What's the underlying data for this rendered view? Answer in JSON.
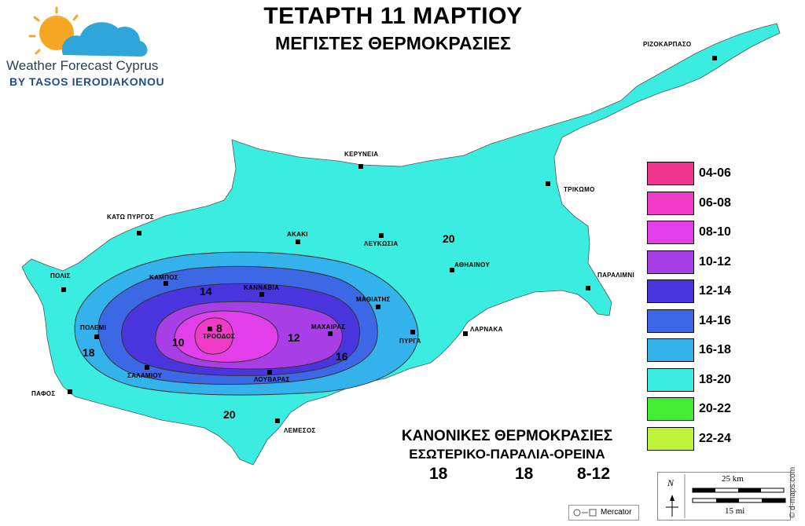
{
  "title": {
    "main": "ΤΕΤΑΡΤΗ 11 ΜΑΡΤΙΟΥ",
    "sub": "ΜΕΓΙΣΤΕΣ ΘΕΡΜΟΚΡΑΣΙΕΣ"
  },
  "logo": {
    "name": "Weather Forecast Cyprus",
    "by": "BY TASOS IERODIAKONOU"
  },
  "towns": [
    {
      "key": "rizokarpaso",
      "name": "ΡΙΖΟΚΑΡΠΑΣΟ"
    },
    {
      "key": "kyrenia",
      "name": "ΚΕΡΥΝΕΙΑ"
    },
    {
      "key": "trikomo",
      "name": "ΤΡΙΚΩΜΟ"
    },
    {
      "key": "kato-pyrgos",
      "name": "ΚΑΤΩ ΠΥΡΓΟΣ"
    },
    {
      "key": "akaki",
      "name": "ΑΚΑΚΙ"
    },
    {
      "key": "lefkosia",
      "name": "ΛΕΥΚΩΣΙΑ"
    },
    {
      "key": "athienou",
      "name": "ΑΘΗΑΙΝΟΥ"
    },
    {
      "key": "paralimni",
      "name": "ΠΑΡΑΛΙΜΝΙ"
    },
    {
      "key": "polis",
      "name": "ΠΟΛΙΣ"
    },
    {
      "key": "kampos",
      "name": "ΚΑΜΠΟΣ"
    },
    {
      "key": "kannavia",
      "name": "ΚΑΝΝΑΒΙΑ"
    },
    {
      "key": "mathiatis",
      "name": "ΜΑΘΙΑΤΗΣ"
    },
    {
      "key": "polemi",
      "name": "ΠΟΛΕΜΙ"
    },
    {
      "key": "troodos",
      "name": "ΤΡΟΟΔΟΣ"
    },
    {
      "key": "machairas",
      "name": "ΜΑΧΑΙΡΑΣ"
    },
    {
      "key": "pyrga",
      "name": "ΠΥΡΓΑ"
    },
    {
      "key": "larnaka",
      "name": "ΛΑΡΝΑΚΑ"
    },
    {
      "key": "salamiou",
      "name": "ΣΑΛΑΜΙΟΥ"
    },
    {
      "key": "louvaras",
      "name": "ΛΟΥΒΑΡΑΣ"
    },
    {
      "key": "pafos",
      "name": "ΠΑΦΟΣ"
    },
    {
      "key": "lemesos",
      "name": "ΛΕΜΕΣΟΣ"
    }
  ],
  "isotherm_labels": {
    "north_20": "20",
    "south_20": "20",
    "west_18": "18",
    "east_16": "16",
    "north_14": "14",
    "east_12": "12",
    "west_10": "10",
    "center_8": "8"
  },
  "legend": [
    {
      "range": "04-06",
      "color": "#f0358f"
    },
    {
      "range": "06-08",
      "color": "#f03bc8"
    },
    {
      "range": "08-10",
      "color": "#e23fea"
    },
    {
      "range": "10-12",
      "color": "#a83fe6"
    },
    {
      "range": "12-14",
      "color": "#4a34dd"
    },
    {
      "range": "14-16",
      "color": "#3c68e6"
    },
    {
      "range": "16-18",
      "color": "#33b2ec"
    },
    {
      "range": "18-20",
      "color": "#3aede0"
    },
    {
      "range": "20-22",
      "color": "#43ed34"
    },
    {
      "range": "22-24",
      "color": "#bdf43a"
    }
  ],
  "normals": {
    "title": "ΚΑΝΟΝΙΚΕΣ ΘΕΡΜΟΚΡΑΣΙΕΣ",
    "subtitle": "ΕΣΩΤΕΡΙΚΟ-ΠΑΡΑΛΙΑ-ΟΡΕΙΝΑ",
    "inland": "18",
    "coast": "18",
    "mountain": "8-12"
  },
  "scale": {
    "north": "N",
    "km": "25 km",
    "mi": "15 mi"
  },
  "projection": "Mercator",
  "credit": "© d-maps.com",
  "colors": {
    "sea": "#ffffff",
    "land_base": "#3aede0"
  }
}
